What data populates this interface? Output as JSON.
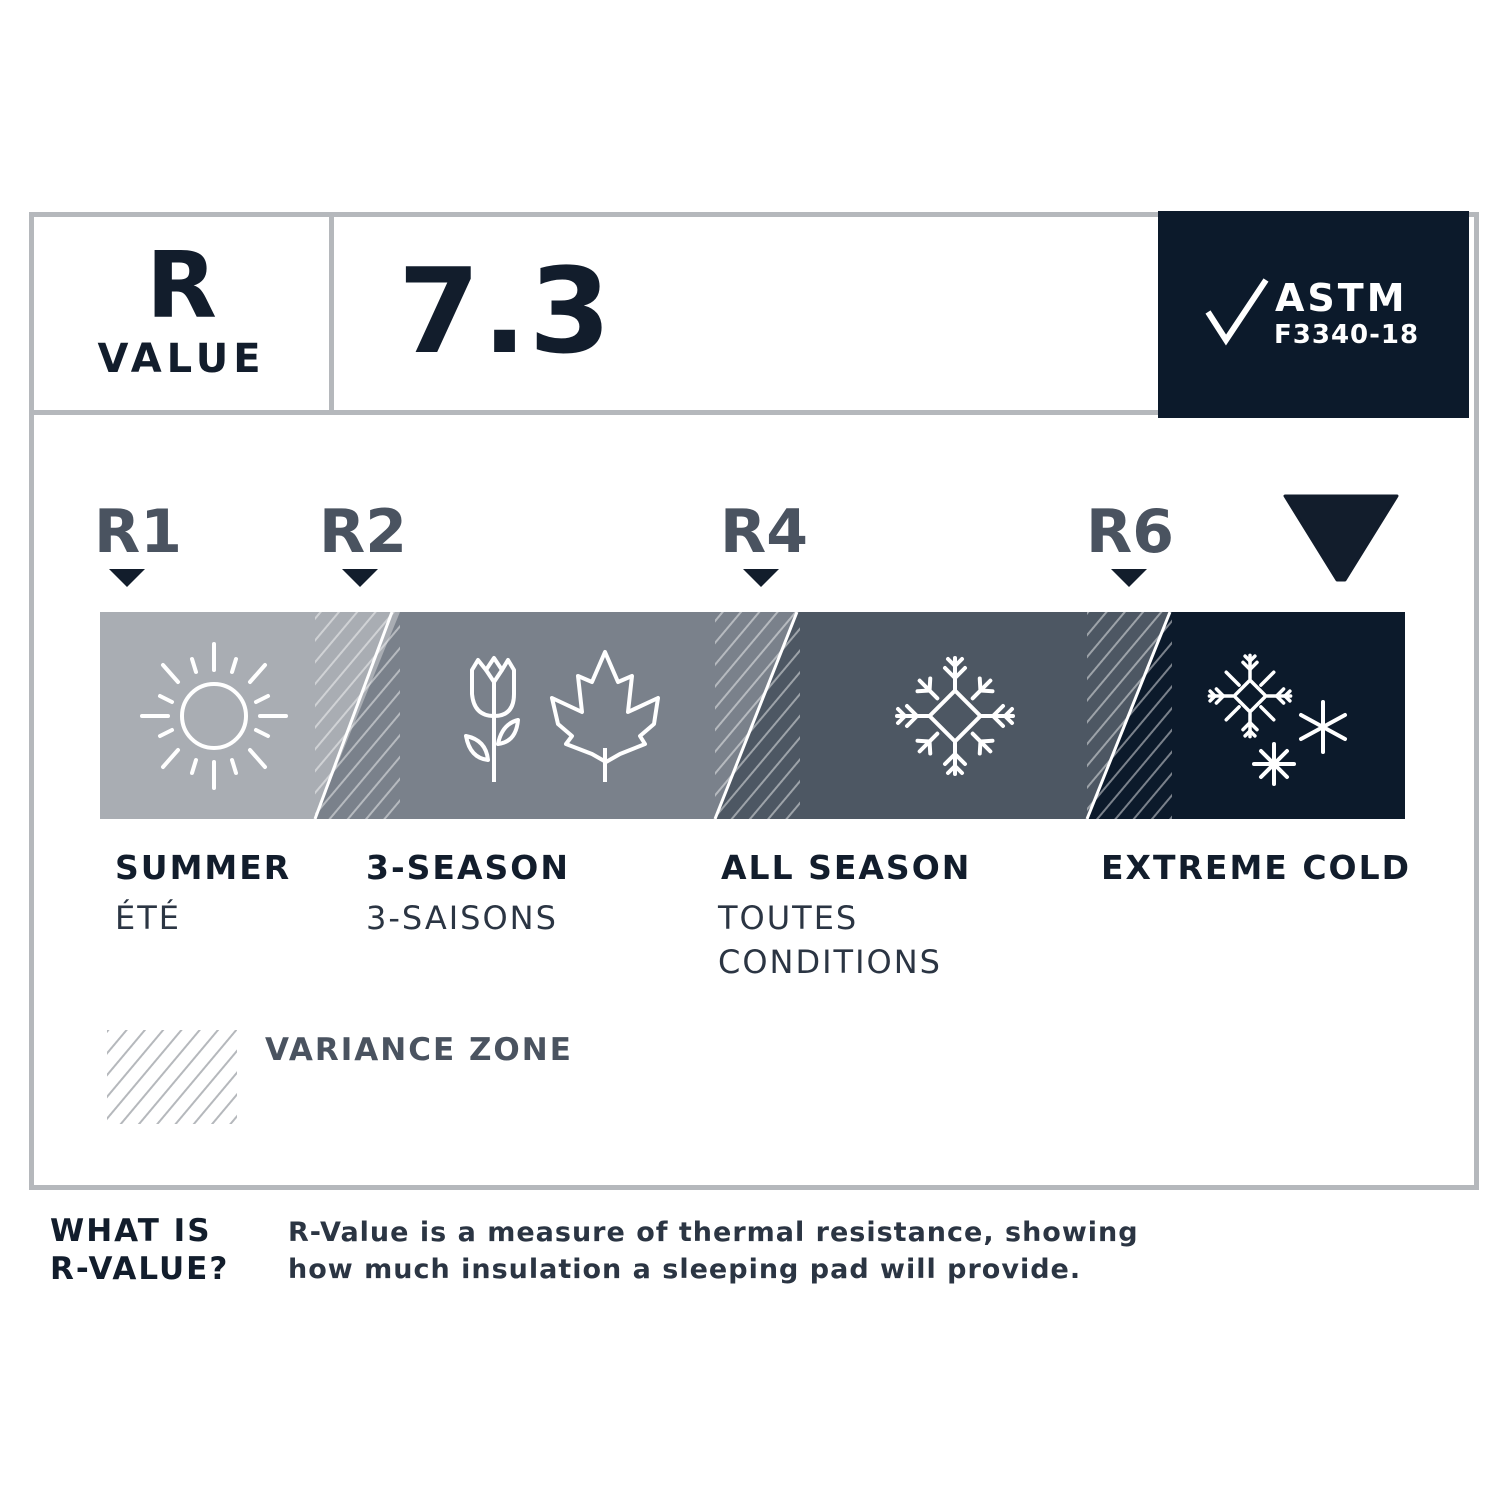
{
  "header": {
    "r_label": "R",
    "value_label": "VALUE",
    "r_value": "7.3",
    "certification": {
      "name": "ASTM",
      "standard": "F3340-18",
      "icon": "checkmark-icon"
    }
  },
  "scale": {
    "markers": [
      {
        "label": "R1",
        "value": 1
      },
      {
        "label": "R2",
        "value": 2
      },
      {
        "label": "R4",
        "value": 4
      },
      {
        "label": "R6",
        "value": 6
      }
    ],
    "current_value": 7.3,
    "zones": [
      {
        "name": "SUMMER",
        "name_fr": "ÉTÉ",
        "icon": "sun-icon",
        "color": "#a9adb3"
      },
      {
        "name": "3-SEASON",
        "name_fr": "3-SAISONS",
        "icon": "tulip-and-maple-leaf-icon",
        "color": "#7a818b"
      },
      {
        "name": "ALL SEASON",
        "name_fr_line1": "TOUTES",
        "name_fr_line2": "CONDITIONS",
        "icon": "snowflake-icon",
        "color": "#4d5763"
      },
      {
        "name": "EXTREME COLD",
        "icon": "snowflakes-icon",
        "color": "#0c1a2b"
      }
    ]
  },
  "legend": {
    "variance_label": "VARIANCE ZONE"
  },
  "footer": {
    "question_line1": "WHAT IS",
    "question_line2": "R-VALUE?",
    "answer_line1": "R-Value is a measure of thermal resistance, showing",
    "answer_line2": "how much insulation a sleeping pad will provide."
  },
  "colors": {
    "border": "#b5b8bc",
    "navy": "#0c1a2b",
    "marker_text": "#4a5360"
  }
}
